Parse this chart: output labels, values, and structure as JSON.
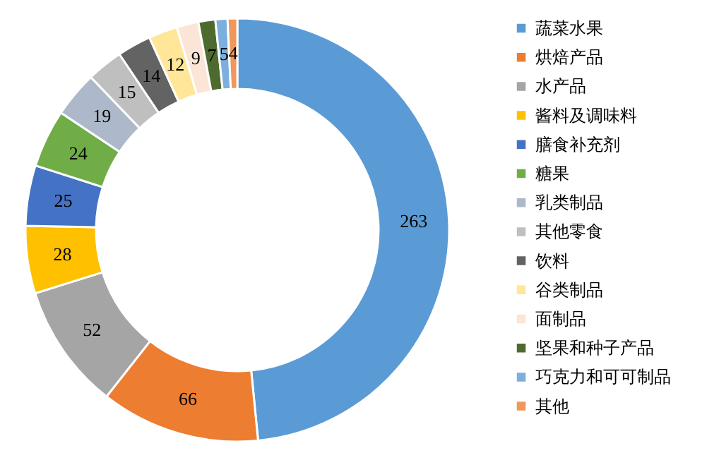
{
  "chart_data": {
    "type": "donut",
    "categories": [
      "蔬菜水果",
      "烘焙产品",
      "水产品",
      "酱料及调味料",
      "膳食补充剂",
      "糖果",
      "乳类制品",
      "其他零食",
      "饮料",
      "谷类制品",
      "面制品",
      "坚果和种子产品",
      "巧克力和可可制品",
      "其他"
    ],
    "values": [
      263,
      66,
      52,
      28,
      25,
      24,
      19,
      15,
      14,
      12,
      9,
      7,
      5,
      4
    ],
    "colors": [
      "#5b9bd5",
      "#ed7d31",
      "#a5a5a5",
      "#ffc000",
      "#4472c4",
      "#70ad47",
      "#adb9ca",
      "#bfbfbf",
      "#636363",
      "#ffe699",
      "#fbe5d6",
      "#4e6b2f",
      "#7cafdd",
      "#f1975a"
    ],
    "data_labels": true,
    "legend": "right"
  }
}
